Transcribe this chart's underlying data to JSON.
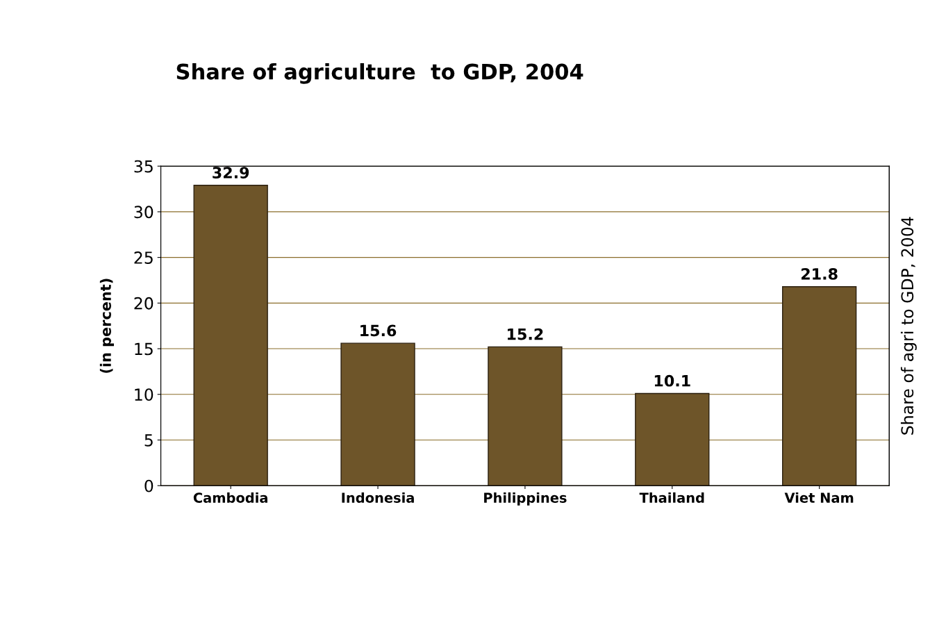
{
  "chart_data": {
    "type": "bar",
    "title": "Share of agriculture  to GDP, 2004",
    "ylabel": "(in percent)",
    "y2label": "Share of agri to GDP, 2004",
    "categories": [
      "Cambodia",
      "Indonesia",
      "Philippines",
      "Thailand",
      "Viet Nam"
    ],
    "values": [
      32.9,
      15.6,
      15.2,
      10.1,
      21.8
    ],
    "color": "#6e5529",
    "ylim": [
      0,
      35
    ],
    "yticks": [
      0,
      5,
      10,
      15,
      20,
      25,
      30,
      35
    ],
    "grid": "y",
    "data_labels": true
  }
}
